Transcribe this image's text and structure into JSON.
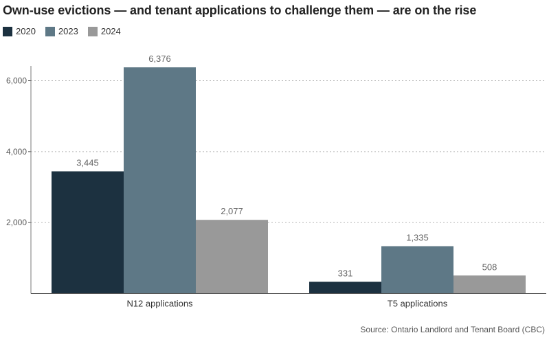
{
  "chart_data": {
    "type": "bar",
    "title": "Own-use evictions — and tenant applications to challenge them — are on the rise",
    "categories": [
      "N12 applications",
      "T5 applications"
    ],
    "series": [
      {
        "name": "2020",
        "color": "#1c3140",
        "values": [
          3445,
          331
        ],
        "labels": [
          "3,445",
          "331"
        ]
      },
      {
        "name": "2023",
        "color": "#5e7886",
        "values": [
          6376,
          1335
        ],
        "labels": [
          "6,376",
          "1,335"
        ]
      },
      {
        "name": "2024",
        "color": "#999999",
        "values": [
          2077,
          508
        ],
        "labels": [
          "2,077",
          "508"
        ]
      }
    ],
    "ylim": [
      0,
      7000
    ],
    "yticks": [
      2000,
      4000,
      6000
    ],
    "ytick_labels": [
      "2,000",
      "4,000",
      "6,000"
    ],
    "xlabel": "",
    "ylabel": "",
    "legend_position": "top-left",
    "grid": "horizontal dotted",
    "source": "Source: Ontario Landlord and Tenant Board (CBC)"
  }
}
